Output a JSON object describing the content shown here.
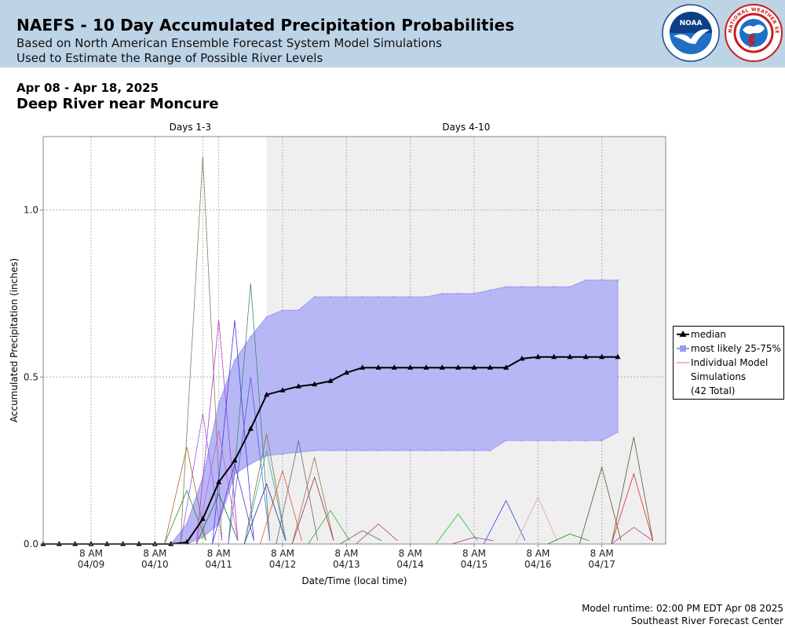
{
  "header": {
    "title": "NAEFS - 10 Day Accumulated Precipitation Probabilities",
    "subtitle1": "Based on North American Ensemble Forecast System Model Simulations",
    "subtitle2": "Used to Estimate the Range of Possible River Levels",
    "logo_left": "noaa-logo",
    "logo_right": "nws-logo",
    "logo_left_text": "NOAA",
    "logo_right_text": "NATIONAL WEATHER SERVICE"
  },
  "info": {
    "date_range": "Apr 08 - Apr 18, 2025",
    "location": "Deep River near Moncure"
  },
  "footer": {
    "runtime": "Model runtime: 02:00 PM EDT Apr 08 2025",
    "center": "Southeast River Forecast Center"
  },
  "colors": {
    "header_bg": "#bdd3e6",
    "band_fill": "#b3b3f5",
    "band_edge": "#9a9af0",
    "median": "#000000",
    "shaded_region": "#efefef"
  },
  "chart_data": {
    "type": "line",
    "section_labels": [
      "Days 1-3",
      "Days 4-10"
    ],
    "section_split_x": 2.75,
    "xlabel": "Date/Time (local time)",
    "ylabel": "Accumulated Precipitation (inches)",
    "xlim": [
      -0.75,
      9
    ],
    "ylim": [
      0,
      1.22
    ],
    "x_ticks": [
      {
        "x": 0,
        "label1": "8 AM",
        "label2": "04/09"
      },
      {
        "x": 1,
        "label1": "8 AM",
        "label2": "04/10"
      },
      {
        "x": 2,
        "label1": "8 AM",
        "label2": "04/11"
      },
      {
        "x": 3,
        "label1": "8 AM",
        "label2": "04/12"
      },
      {
        "x": 4,
        "label1": "8 AM",
        "label2": "04/13"
      },
      {
        "x": 5,
        "label1": "8 AM",
        "label2": "04/14"
      },
      {
        "x": 6,
        "label1": "8 AM",
        "label2": "04/15"
      },
      {
        "x": 7,
        "label1": "8 AM",
        "label2": "04/16"
      },
      {
        "x": 8,
        "label1": "8 AM",
        "label2": "04/17"
      }
    ],
    "y_ticks": [
      {
        "value": 0.0,
        "label": "0.0"
      },
      {
        "value": 0.5,
        "label": "0.5"
      },
      {
        "value": 1.0,
        "label": "1.0"
      }
    ],
    "grid": true,
    "legend_position": "right",
    "legend": {
      "median": "median",
      "band": "most likely 25-75%",
      "members_line1": "Individual Model",
      "members_line2": "Simulations",
      "members_line3": "(42 Total)"
    },
    "median": {
      "x": [
        -0.75,
        -0.5,
        -0.25,
        0,
        0.25,
        0.5,
        0.75,
        1,
        1.25,
        1.5,
        1.75,
        2,
        2.25,
        2.5,
        2.75,
        3,
        3.25,
        3.5,
        3.75,
        4,
        4.25,
        4.5,
        4.75,
        5,
        5.25,
        5.5,
        5.75,
        6,
        6.25,
        6.5,
        6.75,
        7,
        7.25,
        7.5,
        7.75,
        8,
        8.25
      ],
      "y": [
        0,
        0,
        0,
        0,
        0,
        0,
        0,
        0,
        0,
        0.005,
        0.075,
        0.185,
        0.25,
        0.345,
        0.447,
        0.46,
        0.472,
        0.478,
        0.488,
        0.513,
        0.528,
        0.528,
        0.528,
        0.528,
        0.528,
        0.528,
        0.528,
        0.528,
        0.528,
        0.528,
        0.555,
        0.56,
        0.56,
        0.56,
        0.56,
        0.56,
        0.56
      ]
    },
    "band_25_75": {
      "x": [
        1.25,
        1.5,
        1.75,
        2,
        2.25,
        2.5,
        2.75,
        3,
        3.25,
        3.5,
        3.75,
        4,
        4.25,
        4.5,
        4.75,
        5,
        5.25,
        5.5,
        5.75,
        6,
        6.25,
        6.5,
        6.75,
        7,
        7.25,
        7.5,
        7.75,
        8,
        8.25
      ],
      "p75": [
        0,
        0.06,
        0.2,
        0.42,
        0.55,
        0.62,
        0.68,
        0.7,
        0.7,
        0.74,
        0.74,
        0.74,
        0.74,
        0.74,
        0.74,
        0.74,
        0.74,
        0.75,
        0.75,
        0.75,
        0.76,
        0.77,
        0.77,
        0.77,
        0.77,
        0.77,
        0.79,
        0.79,
        0.79
      ],
      "p25": [
        0,
        0.0,
        0.02,
        0.06,
        0.21,
        0.24,
        0.265,
        0.27,
        0.275,
        0.28,
        0.28,
        0.28,
        0.28,
        0.28,
        0.28,
        0.28,
        0.28,
        0.28,
        0.28,
        0.28,
        0.28,
        0.31,
        0.31,
        0.31,
        0.31,
        0.31,
        0.31,
        0.31,
        0.335
      ]
    },
    "member_spikes": [
      {
        "peak_x": 1.75,
        "peak_y": 1.16,
        "color": "#8a7a5a"
      },
      {
        "peak_x": 2.5,
        "peak_y": 0.78,
        "color": "#3a8a6a"
      },
      {
        "peak_x": 2.0,
        "peak_y": 0.67,
        "color": "#b03ad0"
      },
      {
        "peak_x": 2.25,
        "peak_y": 0.67,
        "color": "#3a3ae0"
      },
      {
        "peak_x": 2.5,
        "peak_y": 0.5,
        "color": "#5a5ae0"
      },
      {
        "peak_x": 1.75,
        "peak_y": 0.39,
        "color": "#9a5ae0"
      },
      {
        "peak_x": 2.0,
        "peak_y": 0.34,
        "color": "#d05ad0"
      },
      {
        "peak_x": 2.75,
        "peak_y": 0.33,
        "color": "#7a7a30"
      },
      {
        "peak_x": 3.25,
        "peak_y": 0.31,
        "color": "#6a6a6a"
      },
      {
        "peak_x": 3.5,
        "peak_y": 0.26,
        "color": "#9a7a4a"
      },
      {
        "peak_x": 1.5,
        "peak_y": 0.29,
        "color": "#a06a30"
      },
      {
        "peak_x": 2.75,
        "peak_y": 0.28,
        "color": "#3ab0b0"
      },
      {
        "peak_x": 3.5,
        "peak_y": 0.2,
        "color": "#9a2a4a"
      },
      {
        "peak_x": 3.75,
        "peak_y": 0.1,
        "color": "#2ab02a"
      },
      {
        "peak_x": 4.5,
        "peak_y": 0.06,
        "color": "#b03a3a"
      },
      {
        "peak_x": 5.75,
        "peak_y": 0.09,
        "color": "#2ac02a"
      },
      {
        "peak_x": 6.5,
        "peak_y": 0.13,
        "color": "#3a3ae0"
      },
      {
        "peak_x": 7.0,
        "peak_y": 0.14,
        "color": "#e0a0a0"
      },
      {
        "peak_x": 8.0,
        "peak_y": 0.23,
        "color": "#5a5a2a"
      },
      {
        "peak_x": 8.5,
        "peak_y": 0.32,
        "color": "#5a5a2a"
      },
      {
        "peak_x": 8.5,
        "peak_y": 0.21,
        "color": "#e02a2a"
      },
      {
        "peak_x": 8.5,
        "peak_y": 0.05,
        "color": "#b03a9a"
      },
      {
        "peak_x": 2.0,
        "peak_y": 0.15,
        "color": "#2a6a2a"
      },
      {
        "peak_x": 1.5,
        "peak_y": 0.16,
        "color": "#2a8a2a"
      },
      {
        "peak_x": 2.25,
        "peak_y": 0.24,
        "color": "#6a2ad0"
      },
      {
        "peak_x": 3.0,
        "peak_y": 0.22,
        "color": "#e05a2a"
      },
      {
        "peak_x": 2.75,
        "peak_y": 0.18,
        "color": "#2a2a9a"
      },
      {
        "peak_x": 4.25,
        "peak_y": 0.04,
        "color": "#6a6a6a"
      },
      {
        "peak_x": 7.5,
        "peak_y": 0.03,
        "color": "#2a8a2a"
      },
      {
        "peak_x": 6.0,
        "peak_y": 0.02,
        "color": "#9a2a9a"
      }
    ]
  }
}
